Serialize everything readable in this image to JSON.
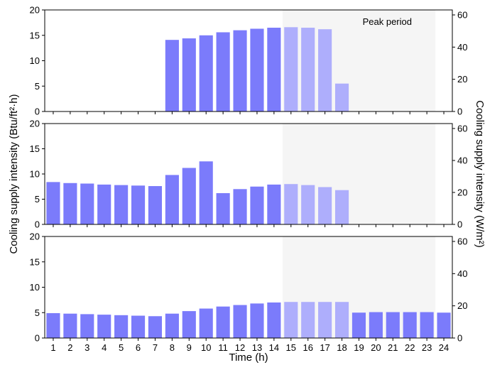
{
  "chart_data": {
    "type": "bar",
    "x": [
      1,
      2,
      3,
      4,
      5,
      6,
      7,
      8,
      9,
      10,
      11,
      12,
      13,
      14,
      15,
      16,
      17,
      18,
      19,
      20,
      21,
      22,
      23,
      24
    ],
    "x_tick_labels": [
      "1",
      "2",
      "3",
      "4",
      "5",
      "6",
      "7",
      "8",
      "9",
      "10",
      "11",
      "12",
      "13",
      "14",
      "15",
      "16",
      "17",
      "18",
      "19",
      "20",
      "21",
      "22",
      "23",
      "24"
    ],
    "xlabel": "Time (h)",
    "ylabel_left": "Cooling supply intensity (Btu/ft²·h)",
    "ylabel_right": "Cooling supply intensity (W/m²)",
    "ylim_left": [
      0,
      20
    ],
    "y_ticks_left": [
      "0",
      "5",
      "10",
      "15",
      "20"
    ],
    "ylim_right": [
      0,
      63.09
    ],
    "y_ticks_right": [
      "0",
      "20",
      "40",
      "60"
    ],
    "peak_period": {
      "label": "Peak period",
      "start": 14.5,
      "end": 23.5
    },
    "colors": {
      "normal": "#7b7bfb",
      "peak": "#aeaefc",
      "peak_band": "#f5f5f5"
    },
    "panels": [
      {
        "values": [
          0,
          0,
          0,
          0,
          0,
          0,
          0,
          14.1,
          14.4,
          15.0,
          15.6,
          16.0,
          16.3,
          16.5,
          16.6,
          16.5,
          16.2,
          5.5,
          0,
          0,
          0,
          0,
          0,
          0
        ]
      },
      {
        "values": [
          8.4,
          8.2,
          8.1,
          7.9,
          7.8,
          7.7,
          7.6,
          9.8,
          11.2,
          12.5,
          6.2,
          7.0,
          7.5,
          7.9,
          8.0,
          7.8,
          7.4,
          6.8,
          0,
          0,
          0,
          0,
          0,
          0
        ]
      },
      {
        "values": [
          4.9,
          4.8,
          4.7,
          4.6,
          4.5,
          4.4,
          4.3,
          4.8,
          5.3,
          5.8,
          6.2,
          6.5,
          6.8,
          7.0,
          7.1,
          7.1,
          7.1,
          7.1,
          5.0,
          5.1,
          5.1,
          5.1,
          5.1,
          5.0
        ]
      }
    ]
  }
}
